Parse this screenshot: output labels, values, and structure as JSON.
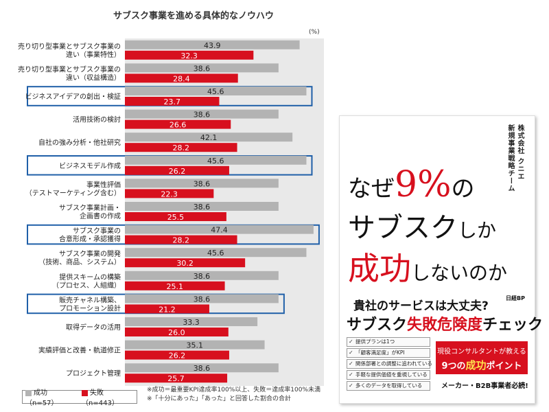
{
  "chart_data": {
    "type": "bar",
    "orientation": "horizontal",
    "title": "サブスク事業を進める具体的なノウハウ",
    "unit": "(%)",
    "categories": [
      [
        "売り切り型事業とサブスク事業の",
        "違い（事業特性）"
      ],
      [
        "売り切り型事業とサブスク事業の",
        "違い（収益構造）"
      ],
      [
        "ビジネスアイデアの創出・検証"
      ],
      [
        "活用技術の検討"
      ],
      [
        "自社の強み分析・他社研究"
      ],
      [
        "ビジネスモデル作成"
      ],
      [
        "事業性評価",
        "（テストマーケティング含む）"
      ],
      [
        "サブスク事業計画・",
        "企画書の作成"
      ],
      [
        "サブスク事業の",
        "合意形成・承認獲得"
      ],
      [
        "サブスク事業の開発",
        "（技術、商品、システム）"
      ],
      [
        "提供スキームの構築",
        "（プロセス、人組織）"
      ],
      [
        "販売チャネル構築、",
        "プロモーション設計"
      ],
      [
        "取得データの活用"
      ],
      [
        "実績評価と改善・軌道修正"
      ],
      [
        "プロジェクト管理"
      ]
    ],
    "highlighted": [
      false,
      false,
      true,
      false,
      false,
      true,
      false,
      false,
      true,
      false,
      false,
      true,
      false,
      false,
      false
    ],
    "series": [
      {
        "name": "成功（n=57）",
        "color": "#b3b3b3",
        "values": [
          43.9,
          38.6,
          45.6,
          38.6,
          42.1,
          45.6,
          38.6,
          38.6,
          47.4,
          45.6,
          38.6,
          38.6,
          33.3,
          35.1,
          38.6
        ]
      },
      {
        "name": "失敗（n=443）",
        "color": "#d7101e",
        "values": [
          32.3,
          28.4,
          23.7,
          26.6,
          28.2,
          26.2,
          22.3,
          25.5,
          28.2,
          30.2,
          25.1,
          21.2,
          26.0,
          26.2,
          25.7
        ]
      }
    ],
    "xlim": [
      0,
      50
    ],
    "grid": false,
    "legend_position": "bottom-left",
    "highlight_color": "#1f5fa8"
  },
  "notes": [
    "※成功＝最重要KPI達成率100%以上、失敗＝達成率100%未満",
    "※「十分にあった」「あった」と回答した割合の合計"
  ],
  "book": {
    "author_company": "株式会社 クニエ",
    "author_team": "新規事業戦略チーム",
    "title_line1_a": "なぜ",
    "title_line1_b": "9%",
    "title_line1_c": "の",
    "title_line2_a": "サブスク",
    "title_line2_b": "しか",
    "title_line3_a": "成功",
    "title_line3_b": "しないのか",
    "publisher": "日経BP",
    "subtitle1": "貴社のサービスは大丈夫?",
    "subtitle2_a": "サブスク",
    "subtitle2_b": "失敗危険度",
    "subtitle2_c": "チェック",
    "checklist": [
      "提供プランは1つ",
      "「顧客満足度」がKPI",
      "関係部署との調整に追われている",
      "手軽な提供価値を重視している",
      "多くのデータを取得している"
    ],
    "promo_line1": "現役コンサルタントが教える",
    "promo_line2_a": "9つの",
    "promo_line2_b": "成功",
    "promo_line2_c": "ポイント",
    "tagline": "メーカー・B2B事業者必読!"
  }
}
